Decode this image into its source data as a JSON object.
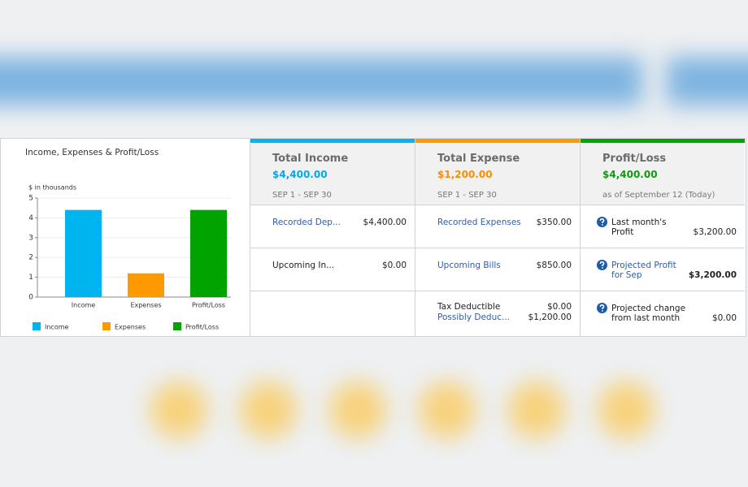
{
  "chart_data": {
    "type": "bar",
    "title": "Income, Expenses & Profit/Loss",
    "y_label": "$ in thousands",
    "categories": [
      "Income",
      "Expenses",
      "Profit/Loss"
    ],
    "values": [
      4.4,
      1.2,
      4.4
    ],
    "colors": [
      "#00b4f0",
      "#ff9900",
      "#00a300"
    ],
    "ylim": [
      0,
      5
    ],
    "yticks": [
      0,
      1,
      2,
      3,
      4,
      5
    ],
    "legend": "bottom"
  },
  "panels": [
    {
      "title": "Total Income",
      "amount": "$4,400.00",
      "subtitle": "SEP 1 - SEP 30",
      "rows": [
        {
          "label": "Recorded Dep...",
          "value": "$4,400.00"
        },
        {
          "label": "Upcoming In...",
          "value": "$0.00"
        }
      ]
    },
    {
      "title": "Total Expense",
      "amount": "$1,200.00",
      "subtitle": "SEP 1 - SEP 30",
      "rows": [
        {
          "label": "Recorded Expenses",
          "value": "$350.00"
        },
        {
          "label": "Upcoming Bills",
          "value": "$850.00"
        },
        {
          "label": "Tax Deductible",
          "value": "$0.00",
          "label2": "Possibly Deduc...",
          "value2": "$1,200.00"
        }
      ]
    },
    {
      "title": "Profit/Loss",
      "amount": "$4,400.00",
      "subtitle": "as of September 12 (Today)",
      "rows": [
        {
          "label": "Last month's Profit",
          "value": "$3,200.00"
        },
        {
          "label": "Projected Profit for Sep",
          "value": "$3,200.00"
        },
        {
          "label": "Projected change from last month",
          "value": "$0.00"
        }
      ]
    }
  ]
}
